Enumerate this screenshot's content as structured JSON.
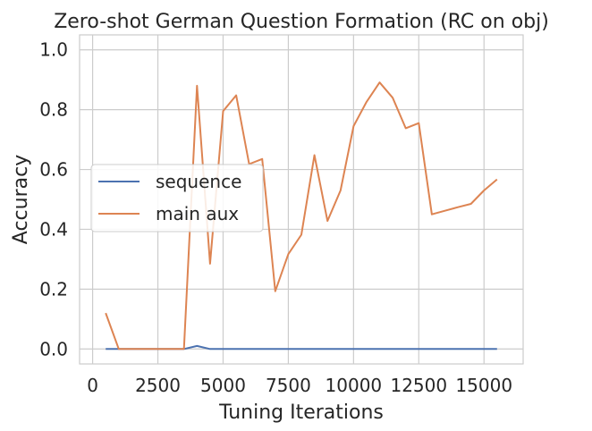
{
  "chart_data": {
    "type": "line",
    "title": "Zero-shot German Question Formation (RC on obj)",
    "xlabel": "Tuning Iterations",
    "ylabel": "Accuracy",
    "xlim": [
      -500,
      16500
    ],
    "ylim": [
      -0.05,
      1.05
    ],
    "xticks": [
      0,
      2500,
      5000,
      7500,
      10000,
      12500,
      15000
    ],
    "yticks": [
      0.0,
      0.2,
      0.4,
      0.6,
      0.8,
      1.0
    ],
    "ytick_labels": [
      "0.0",
      "0.2",
      "0.4",
      "0.6",
      "0.8",
      "1.0"
    ],
    "grid": true,
    "legend_position": "center-left",
    "series": [
      {
        "name": "sequence",
        "color": "#4c72b0",
        "x": [
          500,
          1000,
          1500,
          2000,
          2500,
          3000,
          3500,
          4000,
          4500,
          5000,
          5500,
          6000,
          6500,
          7000,
          7500,
          8000,
          8500,
          9000,
          9500,
          10000,
          10500,
          11000,
          11500,
          12000,
          12500,
          13000,
          13500,
          14000,
          14500,
          15000,
          15500
        ],
        "y": [
          0.0,
          0.0,
          0.0,
          0.0,
          0.0,
          0.0,
          0.0,
          0.01,
          0.0,
          0.0,
          0.0,
          0.0,
          0.0,
          0.0,
          0.0,
          0.0,
          0.0,
          0.0,
          0.0,
          0.0,
          0.0,
          0.0,
          0.0,
          0.0,
          0.0,
          0.0,
          0.0,
          0.0,
          0.0,
          0.0,
          0.0
        ]
      },
      {
        "name": "main aux",
        "color": "#dd8452",
        "x": [
          500,
          1000,
          1500,
          2000,
          2500,
          3000,
          3500,
          4000,
          4500,
          5000,
          5500,
          6000,
          6500,
          7000,
          7500,
          8000,
          8500,
          9000,
          9500,
          10000,
          10500,
          11000,
          11500,
          12000,
          12500,
          13000,
          13500,
          14000,
          14500,
          15000,
          15500
        ],
        "y": [
          0.12,
          0.0,
          0.0,
          0.0,
          0.0,
          0.0,
          0.0,
          0.88,
          0.285,
          0.795,
          0.848,
          0.618,
          0.635,
          0.193,
          0.317,
          0.382,
          0.648,
          0.428,
          0.53,
          0.745,
          0.826,
          0.891,
          0.84,
          0.738,
          0.755,
          0.45,
          0.462,
          0.474,
          0.485,
          0.53,
          0.567
        ]
      }
    ]
  }
}
